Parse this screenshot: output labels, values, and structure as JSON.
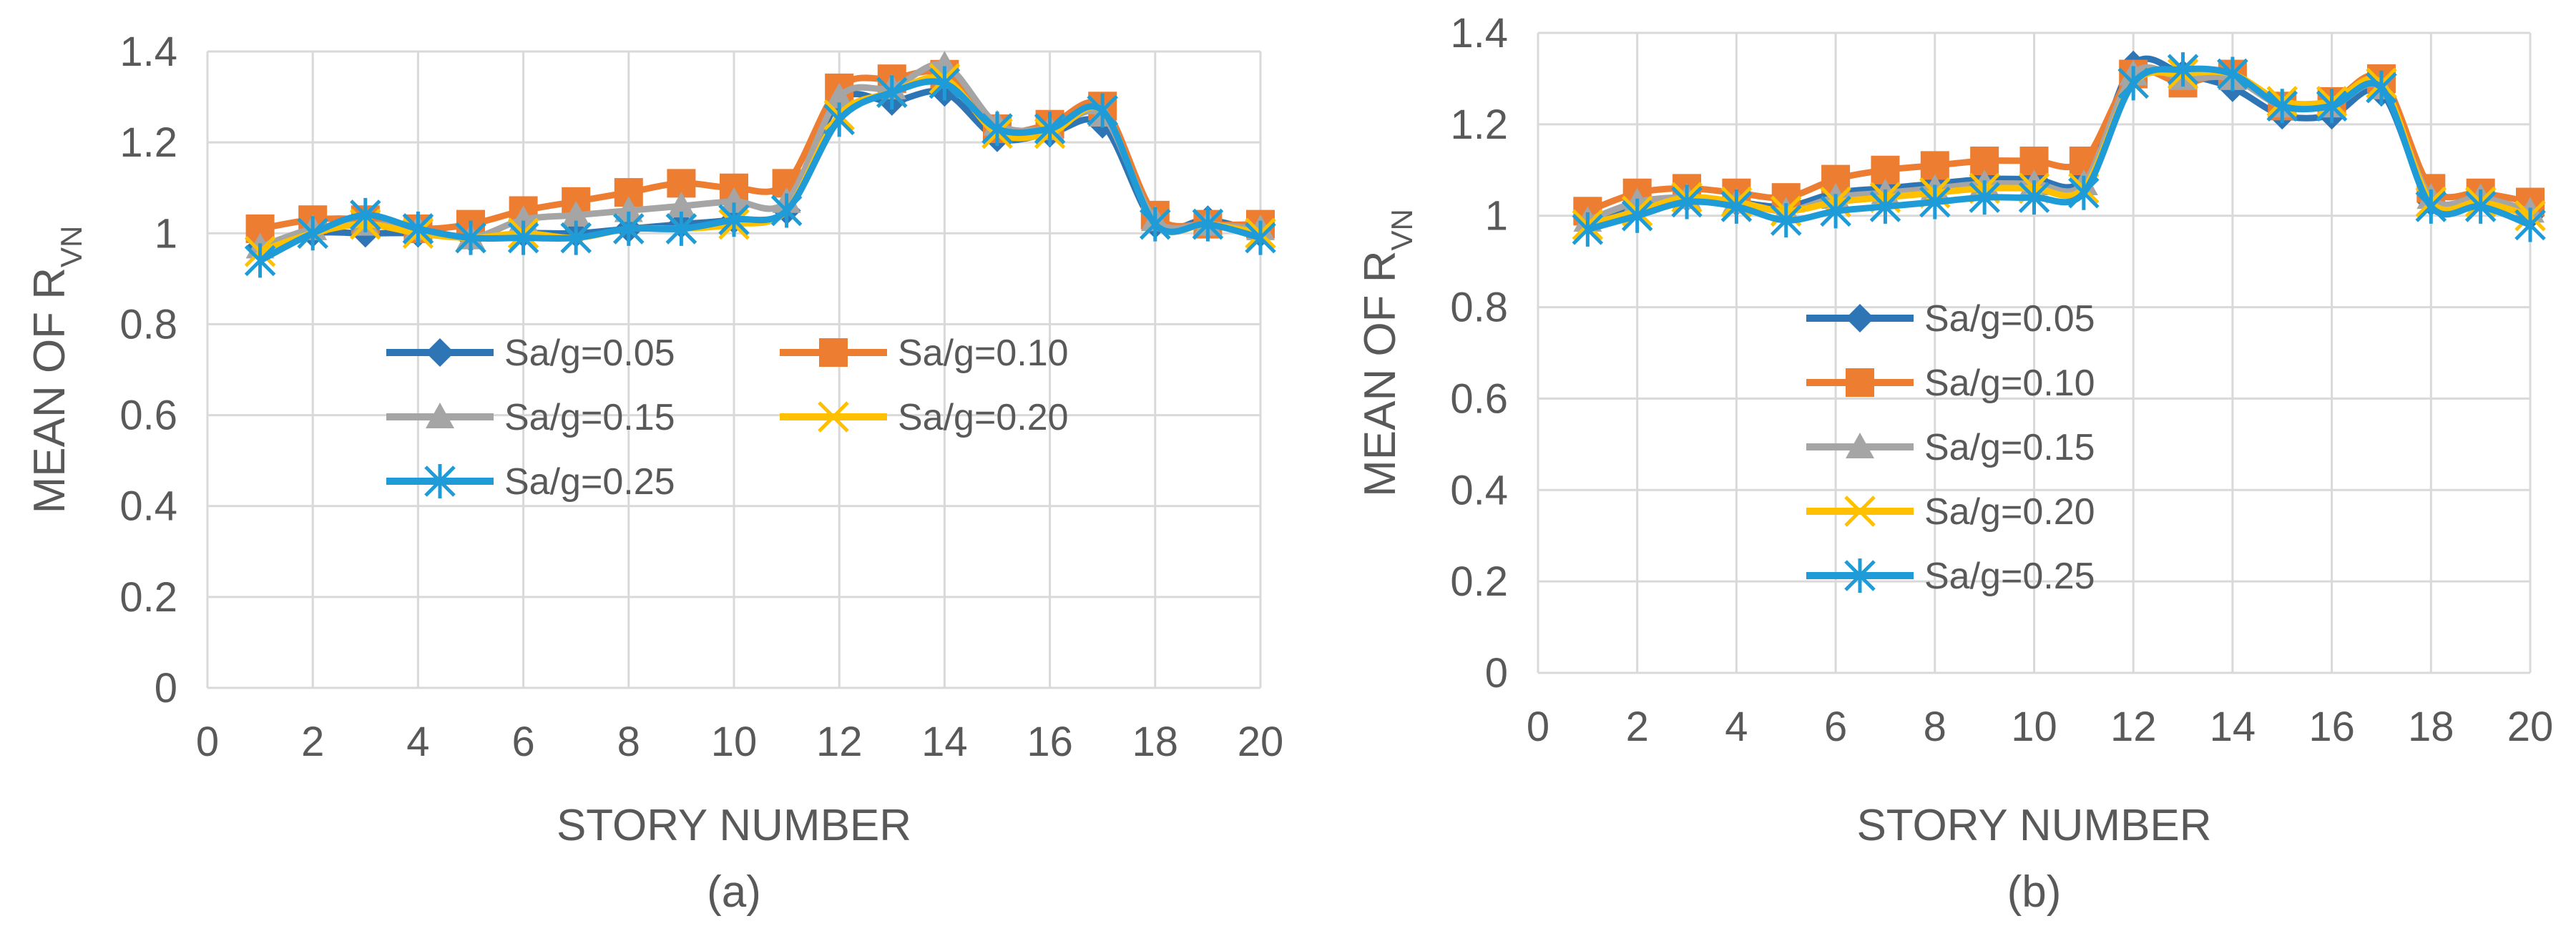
{
  "chart_data": [
    {
      "type": "line",
      "title": "",
      "caption": "(a)",
      "xlabel": "STORY NUMBER",
      "ylabel": "MEAN OF R",
      "ylabel_subscript": "VN",
      "xlim": [
        0,
        20
      ],
      "ylim": [
        0,
        1.4
      ],
      "xticks": [
        "0",
        "2",
        "4",
        "6",
        "8",
        "10",
        "12",
        "14",
        "16",
        "18",
        "20"
      ],
      "yticks": [
        "0",
        "0.2",
        "0.4",
        "0.6",
        "0.8",
        "1",
        "1.2",
        "1.4"
      ],
      "grid": true,
      "legend_position": "center-left",
      "legend_columns": 2,
      "x": [
        1,
        2,
        3,
        4,
        5,
        6,
        7,
        8,
        9,
        10,
        11,
        12,
        13,
        14,
        15,
        16,
        17,
        18,
        19,
        20
      ],
      "series": [
        {
          "name": "Sa/g=0.05",
          "color": "#2E75B6",
          "marker": "diamond",
          "values": [
            0.97,
            1.0,
            1.0,
            1.0,
            0.99,
            1.0,
            1.0,
            1.01,
            1.02,
            1.03,
            1.05,
            1.29,
            1.29,
            1.31,
            1.21,
            1.22,
            1.24,
            1.02,
            1.03,
            1.0
          ]
        },
        {
          "name": "Sa/g=0.10",
          "color": "#ED7D31",
          "marker": "square",
          "values": [
            1.01,
            1.03,
            1.03,
            1.01,
            1.02,
            1.05,
            1.07,
            1.09,
            1.11,
            1.1,
            1.11,
            1.32,
            1.34,
            1.35,
            1.23,
            1.24,
            1.28,
            1.04,
            1.02,
            1.02
          ]
        },
        {
          "name": "Sa/g=0.15",
          "color": "#A5A5A5",
          "marker": "triangle",
          "values": [
            0.97,
            1.01,
            1.02,
            1.01,
            0.99,
            1.03,
            1.04,
            1.05,
            1.06,
            1.07,
            1.07,
            1.3,
            1.32,
            1.37,
            1.24,
            1.23,
            1.26,
            1.03,
            1.02,
            1.01
          ]
        },
        {
          "name": "Sa/g=0.20",
          "color": "#FFC000",
          "marker": "x",
          "values": [
            0.96,
            1.0,
            1.02,
            1.0,
            0.99,
            1.0,
            0.99,
            1.01,
            1.01,
            1.02,
            1.05,
            1.26,
            1.31,
            1.34,
            1.22,
            1.22,
            1.27,
            1.02,
            1.02,
            1.0
          ]
        },
        {
          "name": "Sa/g=0.25",
          "color": "#1F9BD7",
          "marker": "asterisk",
          "values": [
            0.94,
            1.0,
            1.04,
            1.01,
            0.99,
            0.99,
            0.99,
            1.01,
            1.01,
            1.03,
            1.05,
            1.25,
            1.31,
            1.33,
            1.23,
            1.23,
            1.27,
            1.02,
            1.02,
            0.99
          ]
        }
      ]
    },
    {
      "type": "line",
      "title": "",
      "caption": "(b)",
      "xlabel": "STORY NUMBER",
      "ylabel": "MEAN OF R",
      "ylabel_subscript": "VN",
      "xlim": [
        0,
        20
      ],
      "ylim": [
        0,
        1.4
      ],
      "xticks": [
        "0",
        "2",
        "4",
        "6",
        "8",
        "10",
        "12",
        "14",
        "16",
        "18",
        "20"
      ],
      "yticks": [
        "0",
        "0.2",
        "0.4",
        "0.6",
        "0.8",
        "1",
        "1.2",
        "1.4"
      ],
      "grid": true,
      "legend_position": "center-left",
      "legend_columns": 1,
      "x": [
        1,
        2,
        3,
        4,
        5,
        6,
        7,
        8,
        9,
        10,
        11,
        12,
        13,
        14,
        15,
        16,
        17,
        18,
        19,
        20
      ],
      "series": [
        {
          "name": "Sa/g=0.05",
          "color": "#2E75B6",
          "marker": "diamond",
          "values": [
            0.99,
            1.02,
            1.04,
            1.03,
            1.02,
            1.05,
            1.06,
            1.07,
            1.08,
            1.08,
            1.08,
            1.33,
            1.31,
            1.28,
            1.22,
            1.22,
            1.27,
            1.03,
            1.04,
            1.0
          ]
        },
        {
          "name": "Sa/g=0.10",
          "color": "#ED7D31",
          "marker": "square",
          "values": [
            1.01,
            1.05,
            1.06,
            1.05,
            1.04,
            1.08,
            1.1,
            1.11,
            1.12,
            1.12,
            1.12,
            1.31,
            1.29,
            1.31,
            1.24,
            1.25,
            1.3,
            1.06,
            1.05,
            1.03
          ]
        },
        {
          "name": "Sa/g=0.15",
          "color": "#A5A5A5",
          "marker": "triangle",
          "values": [
            0.99,
            1.03,
            1.04,
            1.03,
            1.01,
            1.04,
            1.05,
            1.06,
            1.07,
            1.07,
            1.07,
            1.31,
            1.3,
            1.3,
            1.24,
            1.24,
            1.28,
            1.04,
            1.04,
            1.01
          ]
        },
        {
          "name": "Sa/g=0.20",
          "color": "#FFC000",
          "marker": "x",
          "values": [
            0.98,
            1.01,
            1.04,
            1.03,
            1.01,
            1.03,
            1.04,
            1.05,
            1.06,
            1.06,
            1.06,
            1.29,
            1.31,
            1.31,
            1.25,
            1.25,
            1.29,
            1.03,
            1.03,
            1.0
          ]
        },
        {
          "name": "Sa/g=0.25",
          "color": "#1F9BD7",
          "marker": "asterisk",
          "values": [
            0.97,
            1.0,
            1.03,
            1.02,
            0.99,
            1.01,
            1.02,
            1.03,
            1.04,
            1.04,
            1.05,
            1.29,
            1.32,
            1.31,
            1.24,
            1.24,
            1.28,
            1.02,
            1.02,
            0.98
          ]
        }
      ]
    }
  ]
}
